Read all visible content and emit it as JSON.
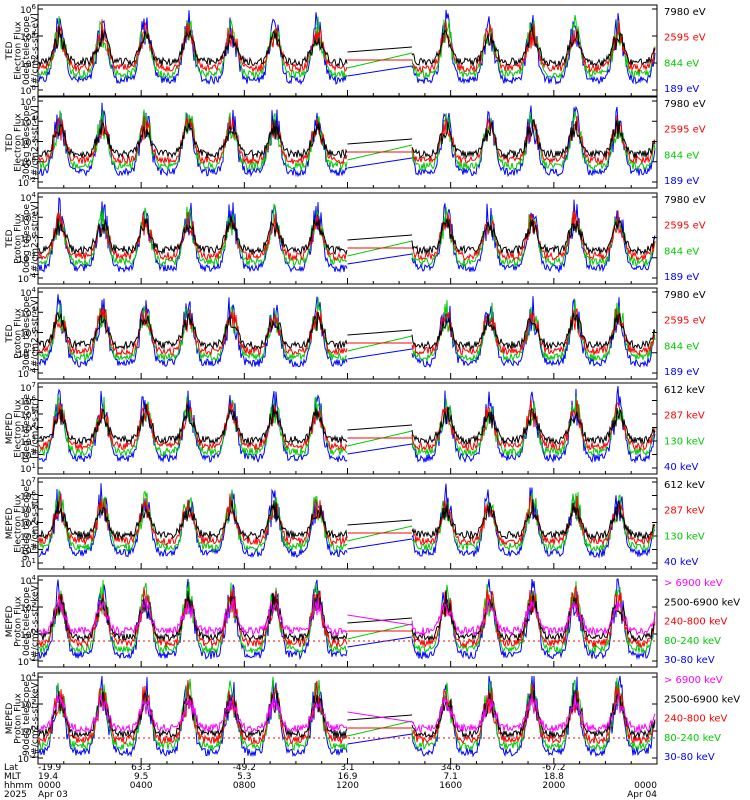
{
  "panels": [
    {
      "ylabel": [
        "TED",
        "Electron Flux",
        "0deg telescope",
        "[#/cm2-s-str-eV]"
      ],
      "yticks": [
        {
          "m": "10",
          "e": "6"
        },
        {
          "m": "10",
          "e": "4"
        },
        {
          "m": "10",
          "e": "2"
        },
        {
          "m": "10",
          "e": "0"
        }
      ],
      "legend": [
        {
          "label": "7980 eV",
          "color": "#000000"
        },
        {
          "label": "2595 eV",
          "color": "#ff0000"
        },
        {
          "label": "844 eV",
          "color": "#00cc00"
        },
        {
          "label": "189 eV",
          "color": "#0000ff"
        }
      ]
    },
    {
      "ylabel": [
        "TED",
        "Electron Flux",
        "30deg telescope",
        "[#/cm2-s-str-eV]"
      ],
      "yticks": [
        {
          "m": "10",
          "e": "6"
        },
        {
          "m": "10",
          "e": "4"
        },
        {
          "m": "10",
          "e": "2"
        },
        {
          "m": "10",
          "e": "0"
        },
        {
          "m": "10",
          "e": "-2"
        }
      ],
      "legend": [
        {
          "label": "7980 eV",
          "color": "#000000"
        },
        {
          "label": "2595 eV",
          "color": "#ff0000"
        },
        {
          "label": "844 eV",
          "color": "#00cc00"
        },
        {
          "label": "189 eV",
          "color": "#0000ff"
        }
      ]
    },
    {
      "ylabel": [
        "TED",
        "Proton Flux",
        "0deg telescope",
        "[#/cm2-s-str-eV]"
      ],
      "yticks": [
        {
          "m": "10",
          "e": "4"
        },
        {
          "m": "10",
          "e": "2"
        },
        {
          "m": "10",
          "e": "0"
        },
        {
          "m": "10",
          "e": "-2"
        },
        {
          "m": "10",
          "e": "-4"
        }
      ],
      "legend": [
        {
          "label": "7980 eV",
          "color": "#000000"
        },
        {
          "label": "2595 eV",
          "color": "#ff0000"
        },
        {
          "label": "844 eV",
          "color": "#00cc00"
        },
        {
          "label": "189 eV",
          "color": "#0000ff"
        }
      ]
    },
    {
      "ylabel": [
        "TED",
        "Proton Flux",
        "30deg telescope",
        "[#/cm2-s-str-eV]"
      ],
      "yticks": [
        {
          "m": "10",
          "e": "4"
        },
        {
          "m": "10",
          "e": "2"
        },
        {
          "m": "10",
          "e": "0"
        },
        {
          "m": "10",
          "e": "-2"
        },
        {
          "m": "10",
          "e": "-4"
        }
      ],
      "legend": [
        {
          "label": "7980 eV",
          "color": "#000000"
        },
        {
          "label": "2595 eV",
          "color": "#ff0000"
        },
        {
          "label": "844 eV",
          "color": "#00cc00"
        },
        {
          "label": "189 eV",
          "color": "#0000ff"
        }
      ]
    },
    {
      "ylabel": [
        "MEPED",
        "Electron Flux",
        "0deg telescope",
        "[#/cm2-s-str]"
      ],
      "yticks": [
        {
          "m": "10",
          "e": "7"
        },
        {
          "m": "10",
          "e": "6"
        },
        {
          "m": "10",
          "e": "5"
        },
        {
          "m": "10",
          "e": "4"
        },
        {
          "m": "10",
          "e": "3"
        },
        {
          "m": "10",
          "e": "2"
        },
        {
          "m": "10",
          "e": "1"
        }
      ],
      "legend": [
        {
          "label": "612 keV",
          "color": "#000000"
        },
        {
          "label": "287 keV",
          "color": "#ff0000"
        },
        {
          "label": "130 keV",
          "color": "#00cc00"
        },
        {
          "label": "40 keV",
          "color": "#0000ff"
        }
      ]
    },
    {
      "ylabel": [
        "MEPED",
        "Electron Flux",
        "90deg telescope",
        "[#/cm2-s-str]"
      ],
      "yticks": [
        {
          "m": "10",
          "e": "7"
        },
        {
          "m": "10",
          "e": "6"
        },
        {
          "m": "10",
          "e": "5"
        },
        {
          "m": "10",
          "e": "4"
        },
        {
          "m": "10",
          "e": "3"
        },
        {
          "m": "10",
          "e": "2"
        },
        {
          "m": "10",
          "e": "1"
        }
      ],
      "legend": [
        {
          "label": "612 keV",
          "color": "#000000"
        },
        {
          "label": "287 keV",
          "color": "#ff0000"
        },
        {
          "label": "130 keV",
          "color": "#00cc00"
        },
        {
          "label": "40 keV",
          "color": "#0000ff"
        }
      ]
    },
    {
      "ylabel": [
        "MEPED",
        "Proton Flux",
        "0deg telescope",
        "[#/cm2-s-str-keV]"
      ],
      "yticks": [
        {
          "m": "10",
          "e": "4"
        },
        {
          "m": "10",
          "e": "2"
        },
        {
          "m": "10",
          "e": "0"
        },
        {
          "m": "10",
          "e": "-2"
        }
      ],
      "legend": [
        {
          "label": "> 6900 keV",
          "color": "#ff00ff"
        },
        {
          "label": "2500-6900 keV",
          "color": "#000000"
        },
        {
          "label": "240-800 keV",
          "color": "#ff0000"
        },
        {
          "label": "80-240 keV",
          "color": "#00cc00"
        },
        {
          "label": "30-80 keV",
          "color": "#0000ff"
        }
      ]
    },
    {
      "ylabel": [
        "MEPED",
        "Proton Flux",
        "90deg telescope",
        "[#/cm2-s-str-keV]"
      ],
      "yticks": [
        {
          "m": "10",
          "e": "4"
        },
        {
          "m": "10",
          "e": "2"
        },
        {
          "m": "10",
          "e": "0"
        },
        {
          "m": "10",
          "e": "-2"
        }
      ],
      "legend": [
        {
          "label": "> 6900 keV",
          "color": "#ff00ff"
        },
        {
          "label": "2500-6900 keV",
          "color": "#000000"
        },
        {
          "label": "240-800 keV",
          "color": "#ff0000"
        },
        {
          "label": "80-240 keV",
          "color": "#00cc00"
        },
        {
          "label": "30-80 keV",
          "color": "#0000ff"
        }
      ]
    }
  ],
  "xaxis": {
    "row_labels": [
      "Lat",
      "MLT",
      "hhmm",
      "2025"
    ],
    "ticks": [
      {
        "lat": "-19.9",
        "mlt": "19.4",
        "hhmm": "0000",
        "date": "Apr 03"
      },
      {
        "lat": "63.3",
        "mlt": "9.5",
        "hhmm": "0400",
        "date": ""
      },
      {
        "lat": "-49.2",
        "mlt": "5.3",
        "hhmm": "0800",
        "date": ""
      },
      {
        "lat": "3.1",
        "mlt": "16.9",
        "hhmm": "1200",
        "date": ""
      },
      {
        "lat": "34.6",
        "mlt": "7.1",
        "hhmm": "1600",
        "date": ""
      },
      {
        "lat": "-67.2",
        "mlt": "18.8",
        "hhmm": "2000",
        "date": ""
      },
      {
        "lat": "",
        "mlt": "",
        "hhmm": "0000",
        "date": "Apr 04"
      }
    ]
  },
  "chart_data": {
    "type": "line",
    "description_scale": "log",
    "x_unit": "hours since 2025 Apr 03 0000 UT",
    "xlim": [
      0,
      24
    ],
    "data_gap_hours": [
      12.0,
      14.5
    ],
    "series_by_panel": [
      [
        "7980 eV",
        "2595 eV",
        "844 eV",
        "189 eV"
      ],
      [
        "7980 eV",
        "2595 eV",
        "844 eV",
        "189 eV"
      ],
      [
        "7980 eV",
        "2595 eV",
        "844 eV",
        "189 eV"
      ],
      [
        "7980 eV",
        "2595 eV",
        "844 eV",
        "189 eV"
      ],
      [
        "612 keV",
        "287 keV",
        "130 keV",
        "40 keV"
      ],
      [
        "612 keV",
        "287 keV",
        "130 keV",
        "40 keV"
      ],
      [
        "> 6900 keV",
        "2500-6900 keV",
        "240-800 keV",
        "80-240 keV",
        "30-80 keV"
      ],
      [
        "> 6900 keV",
        "2500-6900 keV",
        "240-800 keV",
        "80-240 keV",
        "30-80 keV"
      ]
    ],
    "ylims_log10": [
      [
        0,
        6
      ],
      [
        -2.6,
        6
      ],
      [
        -4.6,
        4.6
      ],
      [
        -4.6,
        4.6
      ],
      [
        1,
        7
      ],
      [
        1,
        7
      ],
      [
        -2.6,
        4.6
      ],
      [
        -2.6,
        4.6
      ]
    ],
    "grid": false,
    "legend_placement": "right"
  }
}
